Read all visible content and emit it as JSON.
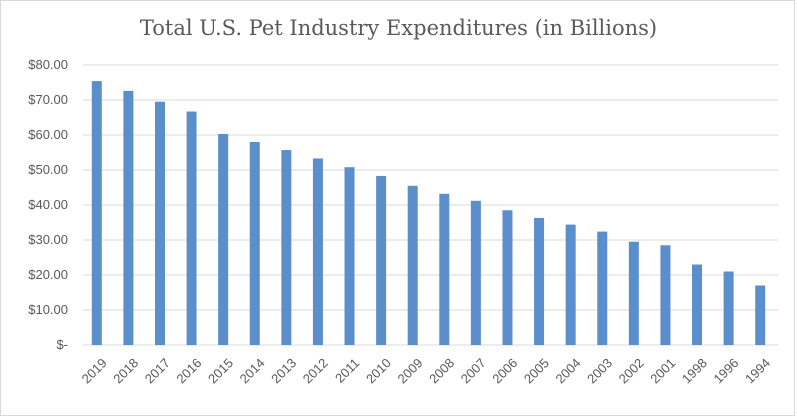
{
  "chart_data": {
    "type": "bar",
    "title": "Total U.S. Pet Industry Expenditures (in Billions)",
    "categories": [
      "2019",
      "2018",
      "2017",
      "2016",
      "2015",
      "2014",
      "2013",
      "2012",
      "2011",
      "2010",
      "2009",
      "2008",
      "2007",
      "2006",
      "2005",
      "2004",
      "2003",
      "2002",
      "2001",
      "1998",
      "1996",
      "1994"
    ],
    "values": [
      75.4,
      72.6,
      69.5,
      66.7,
      60.3,
      58.0,
      55.7,
      53.3,
      50.8,
      48.3,
      45.5,
      43.2,
      41.2,
      38.5,
      36.3,
      34.4,
      32.4,
      29.5,
      28.5,
      23.0,
      21.0,
      17.0
    ],
    "ylim": [
      0,
      80
    ],
    "yticks": [
      0,
      10,
      20,
      30,
      40,
      50,
      60,
      70,
      80
    ],
    "ytick_labels": [
      "$-",
      "$10.00",
      "$20.00",
      "$30.00",
      "$40.00",
      "$50.00",
      "$60.00",
      "$70.00",
      "$80.00"
    ],
    "bar_color": "#5b8fcb",
    "grid_color": "#d9d9d9",
    "grid": true
  }
}
